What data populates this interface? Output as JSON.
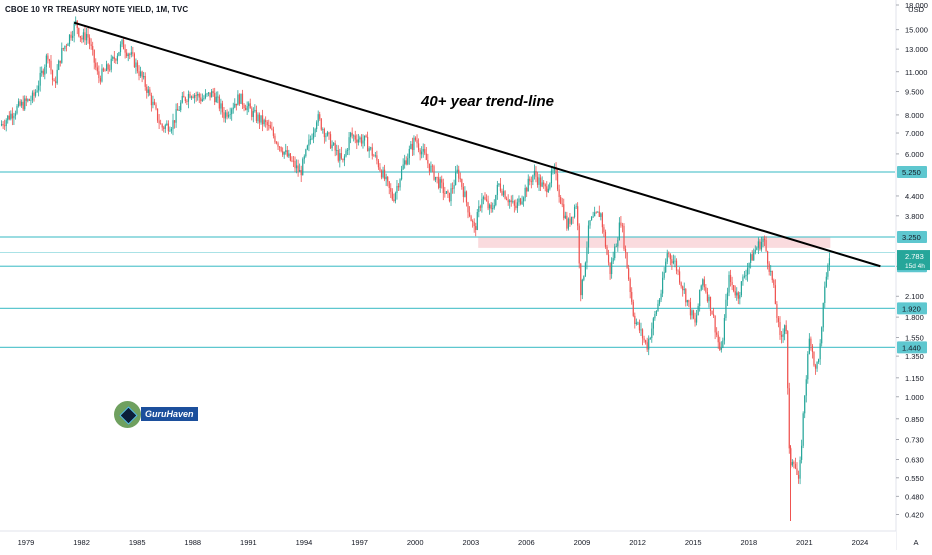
{
  "title": "CBOE 10 YR TREASURY NOTE YIELD, 1M, TVC",
  "annotation": "40+ year trend-line",
  "logo_text": "GuruHaven",
  "currency": "USD",
  "auto_label": "A",
  "colors": {
    "up": "#26a69a",
    "down": "#ef5350",
    "level_line": "#5ec7cf",
    "trend_line": "#000000",
    "zone_fill": "#f8cfd3",
    "tag_bg": "#5ec7cf"
  },
  "chart_data": {
    "type": "candlestick",
    "title": "CBOE 10 YR TREASURY NOTE YIELD, 1M, TVC",
    "scale": "log",
    "ylim": [
      0.4,
      18.0
    ],
    "xlim": [
      1977.6,
      2025.2
    ],
    "x_ticks": [
      "1979",
      "1982",
      "1985",
      "1988",
      "1991",
      "1994",
      "1997",
      "2000",
      "2003",
      "2006",
      "2009",
      "2012",
      "2015",
      "2018",
      "2021",
      "2024"
    ],
    "y_ticks": [
      "18.000",
      "15.000",
      "13.000",
      "11.000",
      "9.500",
      "8.000",
      "7.000",
      "6.000",
      "4.400",
      "3.800",
      "2.620",
      "2.100",
      "1.800",
      "1.550",
      "1.350",
      "1.150",
      "1.000",
      "0.850",
      "0.730",
      "0.630",
      "0.550",
      "0.480",
      "0.420"
    ],
    "last_value": "2.783",
    "countdown": "15d 4h",
    "horizontal_levels": [
      {
        "label": "5.250",
        "value": 5.25
      },
      {
        "label": "3.250",
        "value": 3.25
      },
      {
        "label": "2.620",
        "value": 2.62
      },
      {
        "label": "1.920",
        "value": 1.92
      },
      {
        "label": "1.440",
        "value": 1.44
      }
    ],
    "extra_level": 2.9,
    "resistance_zone": {
      "from_year": 2003.4,
      "to_year": 2022.4,
      "low": 3.0,
      "high": 3.25
    },
    "trend_line": {
      "start": {
        "year": 1981.6,
        "value": 15.8
      },
      "end": {
        "year": 2025.1,
        "value": 2.62
      }
    },
    "path": [
      [
        1977.6,
        7.4
      ],
      [
        1978.5,
        8.4
      ],
      [
        1979.4,
        9.1
      ],
      [
        1979.8,
        10.6
      ],
      [
        1980.2,
        12.7
      ],
      [
        1980.5,
        9.8
      ],
      [
        1980.9,
        12.6
      ],
      [
        1981.3,
        14.1
      ],
      [
        1981.7,
        15.8
      ],
      [
        1982.0,
        14.0
      ],
      [
        1982.3,
        14.6
      ],
      [
        1982.9,
        10.5
      ],
      [
        1983.5,
        11.4
      ],
      [
        1984.2,
        13.5
      ],
      [
        1984.8,
        12.0
      ],
      [
        1985.5,
        9.8
      ],
      [
        1986.3,
        7.3
      ],
      [
        1986.9,
        7.5
      ],
      [
        1987.4,
        8.8
      ],
      [
        1987.9,
        9.5
      ],
      [
        1988.5,
        9.0
      ],
      [
        1989.1,
        9.4
      ],
      [
        1989.7,
        8.0
      ],
      [
        1990.5,
        9.1
      ],
      [
        1991.3,
        8.0
      ],
      [
        1992.0,
        7.4
      ],
      [
        1993.0,
        6.0
      ],
      [
        1993.8,
        5.2
      ],
      [
        1994.7,
        7.9
      ],
      [
        1995.5,
        6.4
      ],
      [
        1996.1,
        5.6
      ],
      [
        1996.5,
        6.9
      ],
      [
        1997.3,
        6.6
      ],
      [
        1998.0,
        5.6
      ],
      [
        1998.8,
        4.3
      ],
      [
        1999.4,
        5.6
      ],
      [
        2000.0,
        6.7
      ],
      [
        2000.9,
        5.3
      ],
      [
        2001.8,
        4.3
      ],
      [
        2002.3,
        5.3
      ],
      [
        2003.2,
        3.4
      ],
      [
        2003.6,
        4.4
      ],
      [
        2004.1,
        3.9
      ],
      [
        2004.5,
        4.8
      ],
      [
        2005.4,
        4.0
      ],
      [
        2006.4,
        5.2
      ],
      [
        2007.0,
        4.6
      ],
      [
        2007.5,
        5.3
      ],
      [
        2008.2,
        3.5
      ],
      [
        2008.7,
        4.2
      ],
      [
        2008.95,
        2.1
      ],
      [
        2009.4,
        3.6
      ],
      [
        2010.0,
        3.9
      ],
      [
        2010.5,
        2.5
      ],
      [
        2011.1,
        3.7
      ],
      [
        2011.8,
        1.8
      ],
      [
        2012.5,
        1.45
      ],
      [
        2013.3,
        2.2
      ],
      [
        2013.6,
        2.9
      ],
      [
        2014.0,
        2.7
      ],
      [
        2015.1,
        1.7
      ],
      [
        2015.5,
        2.4
      ],
      [
        2016.0,
        1.9
      ],
      [
        2016.5,
        1.35
      ],
      [
        2016.9,
        2.4
      ],
      [
        2017.4,
        2.1
      ],
      [
        2017.9,
        2.6
      ],
      [
        2018.4,
        3.0
      ],
      [
        2018.8,
        3.2
      ],
      [
        2019.3,
        2.3
      ],
      [
        2019.7,
        1.5
      ],
      [
        2020.0,
        1.8
      ],
      [
        2020.2,
        0.6
      ],
      [
        2020.4,
        0.65
      ],
      [
        2020.7,
        0.52
      ],
      [
        2021.0,
        1.0
      ],
      [
        2021.3,
        1.6
      ],
      [
        2021.6,
        1.2
      ],
      [
        2021.9,
        1.5
      ],
      [
        2022.1,
        2.3
      ],
      [
        2022.35,
        2.78
      ]
    ]
  }
}
